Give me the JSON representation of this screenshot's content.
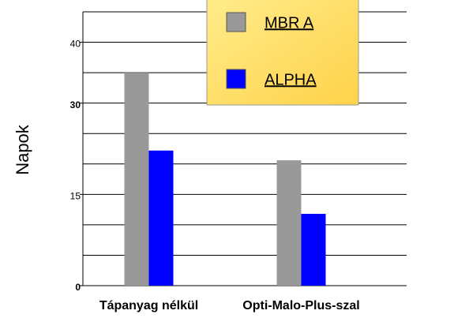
{
  "chart_data": {
    "type": "bar",
    "y_label": "Napok",
    "categories": [
      "Tápanyag nélkül",
      "Opti-Malo-Plus-szal"
    ],
    "series": [
      {
        "name": "MBR A",
        "color": "#999999",
        "values": [
          35,
          20.6
        ]
      },
      {
        "name": "ALPHA",
        "color": "#0000ff",
        "values": [
          22.2,
          11.8
        ]
      }
    ],
    "ylim": [
      0,
      45
    ],
    "yticks": [
      0,
      15,
      30,
      40
    ],
    "ygrid": [
      0,
      5,
      10,
      15,
      20,
      25,
      30,
      35,
      40,
      45
    ],
    "grid": true,
    "legend": "top"
  }
}
